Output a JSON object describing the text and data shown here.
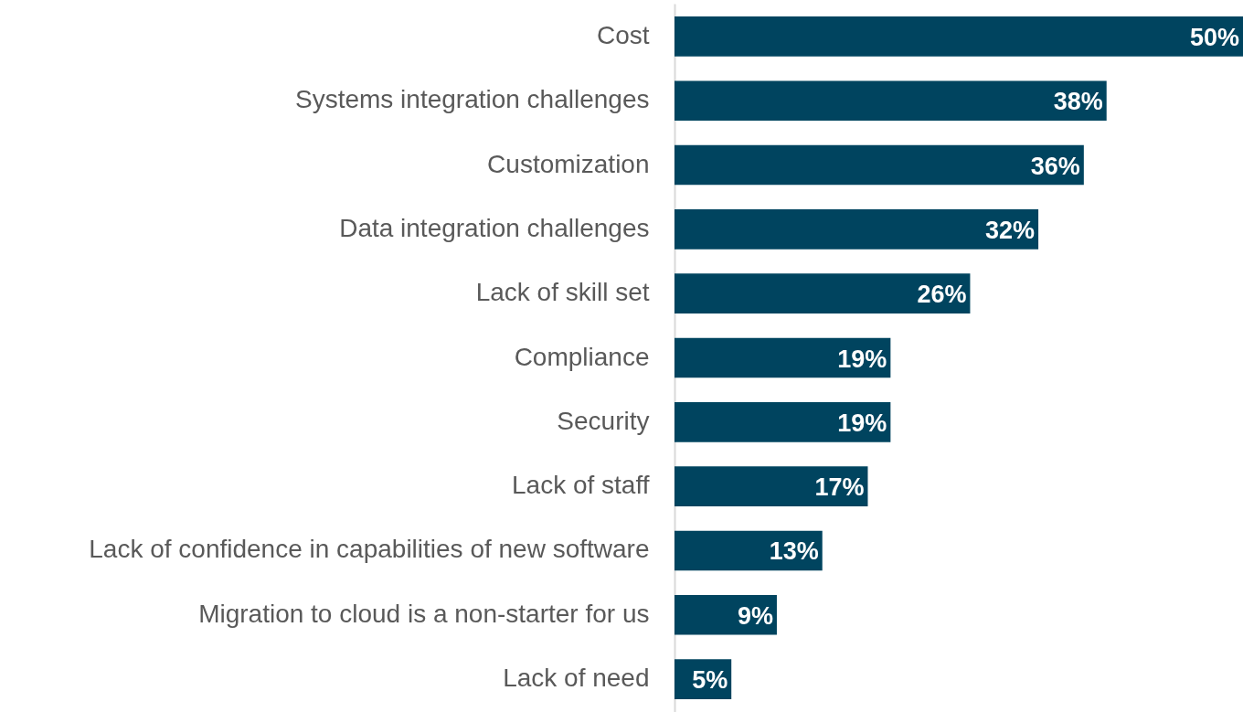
{
  "chart_data": {
    "type": "bar",
    "orientation": "horizontal",
    "categories": [
      "Cost",
      "Systems integration challenges",
      "Customization",
      "Data integration challenges",
      "Lack of skill set",
      "Compliance",
      "Security",
      "Lack of staff",
      "Lack of confidence in capabilities of new software",
      "Migration to cloud is a non-starter for us",
      "Lack of need"
    ],
    "values": [
      50,
      38,
      36,
      32,
      26,
      19,
      19,
      17,
      13,
      9,
      5
    ],
    "value_labels": [
      "50%",
      "38%",
      "36%",
      "32%",
      "26%",
      "19%",
      "19%",
      "17%",
      "13%",
      "9%",
      "5%"
    ],
    "color": "#00445f"
  }
}
